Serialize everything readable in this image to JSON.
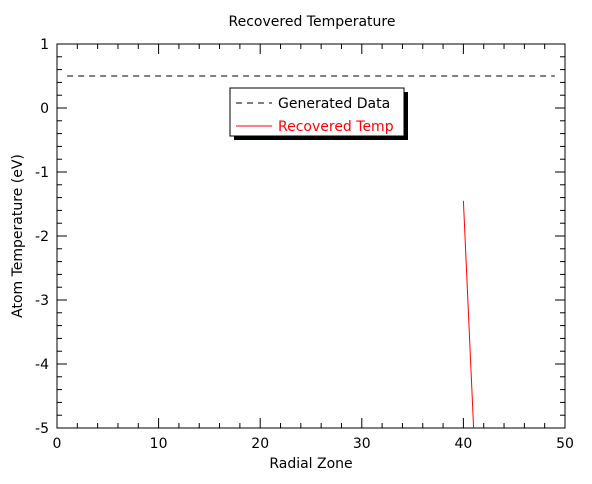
{
  "chart_data": {
    "type": "line",
    "title": "Recovered Temperature",
    "xlabel": "Radial Zone",
    "ylabel": "Atom Temperature (eV)",
    "xlim": [
      0,
      50
    ],
    "ylim": [
      -5,
      1
    ],
    "x_ticks": [
      0,
      10,
      20,
      30,
      40,
      50
    ],
    "y_ticks": [
      1,
      0,
      -1,
      -2,
      -3,
      -4,
      -5
    ],
    "x_tick_labels": [
      "0",
      "10",
      "20",
      "30",
      "40",
      "50"
    ],
    "y_tick_labels": [
      "1",
      "0",
      "-1",
      "-2",
      "-3",
      "-4",
      "-5"
    ],
    "grid": false,
    "legend_position": "top-center",
    "series": [
      {
        "name": "Generated Data",
        "style": "dashed",
        "color": "#000000",
        "x": [
          1,
          49
        ],
        "y": [
          0.5,
          0.5
        ]
      },
      {
        "name": "Recovered Temp",
        "style": "solid",
        "color": "#ff0000",
        "x": [
          40,
          41
        ],
        "y": [
          -1.45,
          -5.0
        ]
      }
    ]
  }
}
